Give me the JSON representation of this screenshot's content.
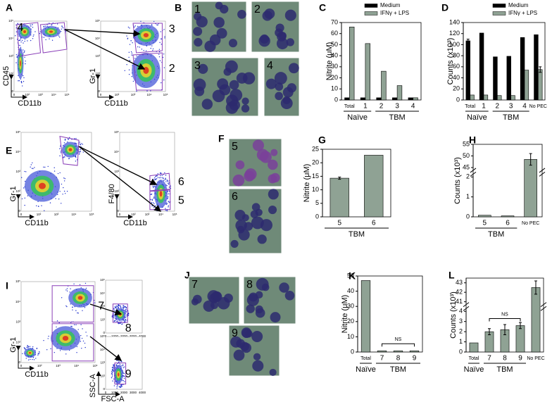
{
  "panel_labels": [
    "A",
    "B",
    "C",
    "D",
    "E",
    "F",
    "G",
    "H",
    "I",
    "J",
    "K",
    "L"
  ],
  "flow": {
    "axis_labels": {
      "cd45": "CD45",
      "cd11b": "CD11b",
      "gr1": "Gr-1",
      "f480": "F4/80",
      "ssc": "SSC-A",
      "fsc": "FSC-A"
    },
    "log_ticks": [
      "0",
      "10²",
      "10³",
      "10⁴",
      "10⁵"
    ],
    "fsc_ticks": [
      "0",
      "1000",
      "2000",
      "3000",
      "4000"
    ],
    "gate_labels": [
      "4",
      "3",
      "2",
      "6",
      "5",
      "7",
      "8",
      "9"
    ]
  },
  "micrograph_labels": [
    "1",
    "2",
    "3",
    "4",
    "5",
    "6",
    "7",
    "8",
    "9"
  ],
  "chart_data": [
    {
      "type": "bar",
      "y_label": "Nitrite (μM)",
      "categories": [
        "Total",
        "1",
        "2",
        "3",
        "4"
      ],
      "groups": [
        "Naïve",
        "Naïve",
        "TBM",
        "TBM",
        "TBM"
      ],
      "series": [
        {
          "name": "Medium",
          "color": "#000000",
          "values": [
            2,
            2,
            2,
            2,
            2
          ]
        },
        {
          "name": "IFNγ + LPS",
          "color": "#8fa294",
          "values": [
            66,
            51,
            26,
            13,
            2
          ]
        }
      ],
      "ylim": [
        0,
        70
      ],
      "yticks": [
        0,
        10,
        20,
        30,
        40,
        50,
        60,
        70
      ]
    },
    {
      "type": "bar",
      "y_label": "Counts (x10³)",
      "categories": [
        "Total",
        "1",
        "2",
        "3",
        "4",
        "No PEC"
      ],
      "groups": [
        "Naïve",
        "Naïve",
        "TBM",
        "TBM",
        "TBM",
        null
      ],
      "series": [
        {
          "name": "Medium",
          "color": "#000000",
          "values": [
            107,
            121,
            78,
            79,
            113,
            118
          ],
          "errors": [
            3,
            null,
            null,
            null,
            null,
            null
          ]
        },
        {
          "name": "IFNγ + LPS",
          "color": "#8fa294",
          "values": [
            9,
            9,
            8,
            8,
            54,
            55
          ],
          "errors": [
            null,
            null,
            null,
            null,
            null,
            5
          ]
        }
      ],
      "ylim": [
        0,
        140
      ],
      "yticks": [
        0,
        20,
        40,
        60,
        80,
        100,
        120,
        140
      ]
    },
    {
      "type": "bar",
      "y_label": "Nitrite (μM)",
      "categories": [
        "5",
        "6"
      ],
      "groups": [
        "TBM",
        "TBM"
      ],
      "values": [
        14.3,
        22.8
      ],
      "errors": [
        0.4,
        null
      ],
      "color": "#8fa294",
      "ylim": [
        0,
        25
      ],
      "yticks": [
        0,
        5,
        10,
        15,
        20,
        25
      ]
    },
    {
      "type": "bar",
      "y_label": "Counts (x10³)",
      "categories": [
        "5",
        "6",
        "No PEC"
      ],
      "groups": [
        "TBM",
        "TBM",
        null
      ],
      "values": [
        0.08,
        0.05,
        48.5
      ],
      "errors": [
        null,
        null,
        2.5
      ],
      "color": "#8fa294",
      "ylim": [
        0,
        2
      ],
      "yticks": [
        0,
        1,
        2
      ],
      "axis_break": {
        "ylim": [
          45,
          55
        ],
        "yticks": [
          45,
          50,
          55
        ]
      }
    },
    {
      "type": "bar",
      "y_label": "Nitrite (μM)",
      "annotation": "NS",
      "categories": [
        "Total",
        "7",
        "8",
        "9"
      ],
      "groups": [
        "Naïve",
        "TBM",
        "TBM",
        "TBM"
      ],
      "values": [
        47,
        0.8,
        0.8,
        0.8
      ],
      "color": "#8fa294",
      "ylim": [
        0,
        50
      ],
      "yticks": [
        0,
        10,
        20,
        30,
        40,
        50
      ]
    },
    {
      "type": "bar",
      "y_label": "Counts (x10³)",
      "annotation": "NS",
      "categories": [
        "Total",
        "7",
        "8",
        "9",
        "No PEC"
      ],
      "groups": [
        "Naïve",
        "TBM",
        "TBM",
        "TBM",
        null
      ],
      "values": [
        0.9,
        2.0,
        2.2,
        2.6,
        42.5
      ],
      "errors": [
        null,
        0.3,
        0.5,
        0.3,
        0.7
      ],
      "color": "#8fa294",
      "ylim": [
        0,
        4
      ],
      "yticks": [
        0,
        1,
        2,
        3,
        4
      ],
      "axis_break": {
        "ylim": [
          41,
          43.5
        ],
        "yticks": [
          41,
          42,
          43
        ]
      }
    }
  ]
}
